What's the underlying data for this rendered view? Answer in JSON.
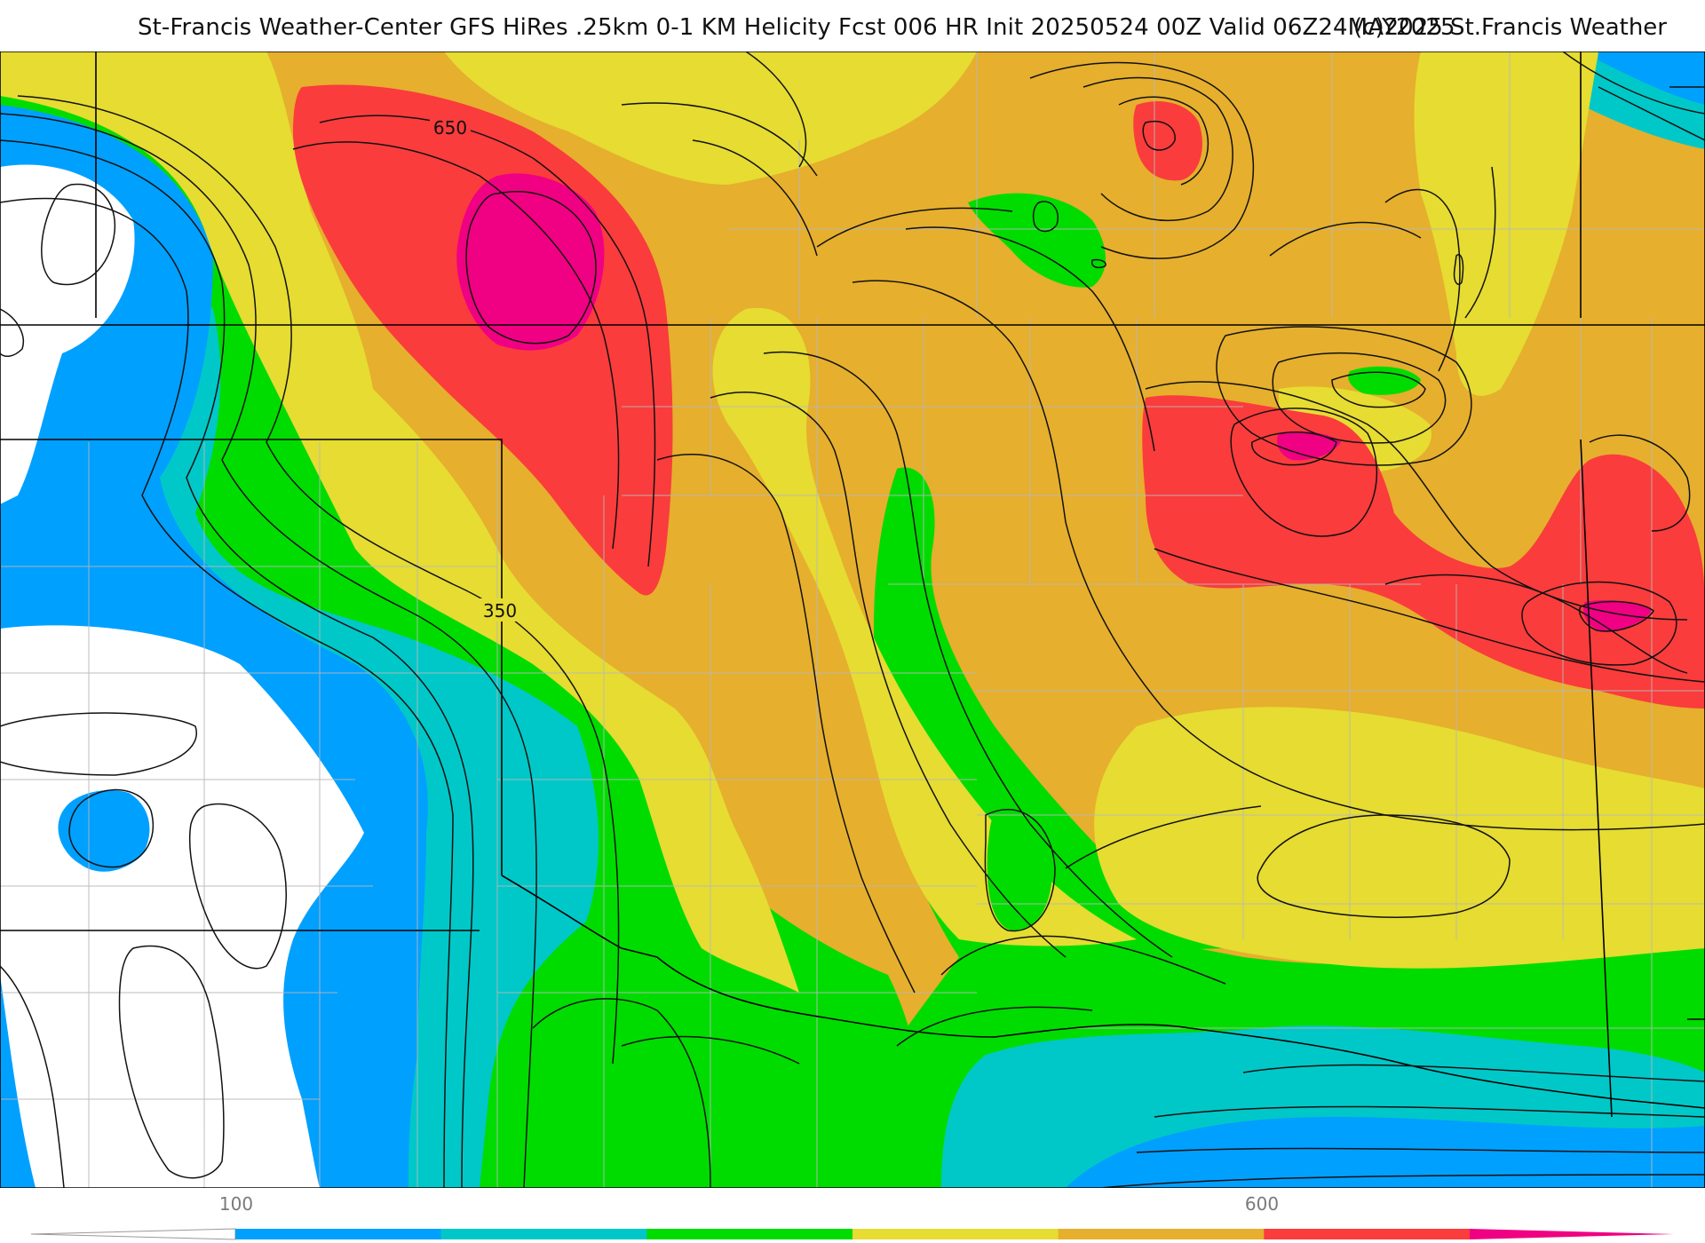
{
  "header": {
    "title": "St-Francis Weather-Center GFS HiRes .25km 0-1 KM Helicity Fcst 006 HR Init 20250524 00Z  Valid 06Z24MAY2025",
    "credit": "(c)2025 St.Francis Weather"
  },
  "map": {
    "field": "0-1 KM Helicity",
    "contour_labels": [
      "650",
      "350"
    ],
    "colors": {
      "white": "#ffffff",
      "blue": "#00a0ff",
      "cyan": "#00c8c8",
      "green": "#00dc00",
      "yellow": "#e6dc32",
      "orange": "#e6af2d",
      "red": "#fa3c3c",
      "magenta": "#f00082",
      "contour": "#111111",
      "county_line": "#b8b8b8",
      "state_line": "#000000"
    }
  },
  "legend": {
    "tick_labels": [
      "100",
      "600"
    ],
    "bands": [
      "#ffffff",
      "#00a0ff",
      "#00c8c8",
      "#00dc00",
      "#e6dc32",
      "#e6af2d",
      "#fa3c3c",
      "#f00082"
    ]
  }
}
